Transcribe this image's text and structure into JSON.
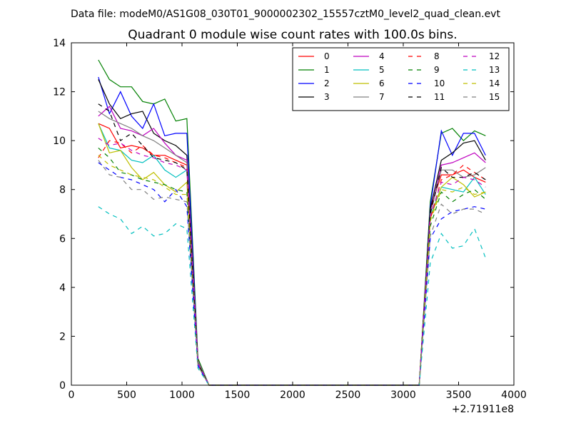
{
  "figure": {
    "suptitle": "Data file: modeM0/AS1G08_030T01_9000002302_15557cztM0_level2_quad_clean.evt"
  },
  "chart_data": {
    "type": "line",
    "title": "Quadrant 0 module wise count rates with 100.0s bins.",
    "xlabel": "",
    "ylabel": "",
    "xlim": [
      0,
      4000
    ],
    "ylim": [
      0,
      14
    ],
    "x_offset_label": "+2.71911e8",
    "xticks": [
      0,
      500,
      1000,
      1500,
      2000,
      2500,
      3000,
      3500,
      4000
    ],
    "yticks": [
      0,
      2,
      4,
      6,
      8,
      10,
      12,
      14
    ],
    "xtick_labels": [
      "0",
      "500",
      "1000",
      "1500",
      "2000",
      "2500",
      "3000",
      "3500",
      "4000"
    ],
    "ytick_labels": [
      "0",
      "2",
      "4",
      "6",
      "8",
      "10",
      "12",
      "14"
    ],
    "grid": false,
    "legend": {
      "position": "top-right",
      "columns": 4
    },
    "x": [
      244,
      344,
      444,
      544,
      644,
      744,
      844,
      944,
      1044,
      1144,
      1244,
      1344,
      1444,
      1544,
      1644,
      1744,
      1844,
      1944,
      2044,
      2144,
      2244,
      2344,
      2444,
      2544,
      2644,
      2744,
      2844,
      2944,
      3044,
      3144,
      3244,
      3344,
      3444,
      3544,
      3644,
      3744
    ],
    "series": [
      {
        "name": "0",
        "color": "#ff0000",
        "dash": "solid",
        "values": [
          10.7,
          10.5,
          9.7,
          9.8,
          9.7,
          9.4,
          9.4,
          9.2,
          9.0,
          1.0,
          0,
          0,
          0,
          0,
          0,
          0,
          0,
          0,
          0,
          0,
          0,
          0,
          0,
          0,
          0,
          0,
          0,
          0,
          0,
          0,
          7.2,
          8.6,
          8.6,
          8.8,
          8.5,
          8.3
        ]
      },
      {
        "name": "1",
        "color": "#008000",
        "dash": "solid",
        "values": [
          13.3,
          12.5,
          12.2,
          12.2,
          11.6,
          11.5,
          11.7,
          10.8,
          10.9,
          1.1,
          0,
          0,
          0,
          0,
          0,
          0,
          0,
          0,
          0,
          0,
          0,
          0,
          0,
          0,
          0,
          0,
          0,
          0,
          0,
          0,
          7.5,
          10.3,
          10.5,
          10.0,
          10.4,
          10.2
        ]
      },
      {
        "name": "2",
        "color": "#0000ff",
        "dash": "solid",
        "values": [
          12.6,
          11.1,
          12.0,
          11.0,
          10.5,
          11.5,
          10.2,
          10.3,
          10.3,
          1.0,
          0,
          0,
          0,
          0,
          0,
          0,
          0,
          0,
          0,
          0,
          0,
          0,
          0,
          0,
          0,
          0,
          0,
          0,
          0,
          0,
          7.3,
          10.4,
          9.4,
          10.3,
          10.3,
          9.4
        ]
      },
      {
        "name": "3",
        "color": "#000000",
        "dash": "solid",
        "values": [
          12.5,
          11.5,
          10.9,
          11.1,
          11.2,
          10.3,
          10.0,
          9.8,
          9.4,
          1.0,
          0,
          0,
          0,
          0,
          0,
          0,
          0,
          0,
          0,
          0,
          0,
          0,
          0,
          0,
          0,
          0,
          0,
          0,
          0,
          0,
          7.2,
          9.2,
          9.5,
          9.9,
          10.0,
          9.2
        ]
      },
      {
        "name": "4",
        "color": "#bf00bf",
        "dash": "solid",
        "values": [
          11.0,
          11.4,
          10.5,
          10.4,
          10.2,
          10.5,
          9.9,
          9.4,
          9.2,
          1.0,
          0,
          0,
          0,
          0,
          0,
          0,
          0,
          0,
          0,
          0,
          0,
          0,
          0,
          0,
          0,
          0,
          0,
          0,
          0,
          0,
          7.0,
          9.0,
          9.1,
          9.3,
          9.5,
          9.1
        ]
      },
      {
        "name": "5",
        "color": "#00bfbf",
        "dash": "solid",
        "values": [
          10.7,
          9.7,
          9.6,
          9.2,
          9.1,
          9.4,
          8.8,
          8.5,
          8.8,
          0.9,
          0,
          0,
          0,
          0,
          0,
          0,
          0,
          0,
          0,
          0,
          0,
          0,
          0,
          0,
          0,
          0,
          0,
          0,
          0,
          0,
          6.9,
          8.1,
          8.0,
          7.9,
          8.5,
          7.8
        ]
      },
      {
        "name": "6",
        "color": "#bfbf00",
        "dash": "solid",
        "values": [
          10.7,
          9.5,
          9.6,
          8.9,
          8.4,
          8.7,
          8.2,
          7.9,
          8.3,
          0.9,
          0,
          0,
          0,
          0,
          0,
          0,
          0,
          0,
          0,
          0,
          0,
          0,
          0,
          0,
          0,
          0,
          0,
          0,
          0,
          0,
          6.8,
          8.1,
          8.5,
          8.2,
          7.7,
          7.9
        ]
      },
      {
        "name": "7",
        "color": "#808080",
        "dash": "solid",
        "values": [
          11.2,
          10.9,
          10.7,
          10.5,
          10.2,
          10.0,
          9.7,
          9.4,
          9.1,
          1.0,
          0,
          0,
          0,
          0,
          0,
          0,
          0,
          0,
          0,
          0,
          0,
          0,
          0,
          0,
          0,
          0,
          0,
          0,
          0,
          0,
          7.0,
          8.8,
          8.8,
          8.5,
          8.6,
          8.9
        ]
      },
      {
        "name": "8",
        "color": "#ff0000",
        "dash": "dashed",
        "values": [
          9.3,
          10.0,
          9.9,
          9.5,
          9.8,
          9.4,
          9.3,
          9.1,
          8.9,
          0.9,
          0,
          0,
          0,
          0,
          0,
          0,
          0,
          0,
          0,
          0,
          0,
          0,
          0,
          0,
          0,
          0,
          0,
          0,
          0,
          0,
          6.8,
          8.4,
          8.6,
          9.0,
          8.7,
          8.4
        ]
      },
      {
        "name": "9",
        "color": "#008000",
        "dash": "dashed",
        "values": [
          9.7,
          9.3,
          8.7,
          8.6,
          8.4,
          8.3,
          8.2,
          8.0,
          7.9,
          0.9,
          0,
          0,
          0,
          0,
          0,
          0,
          0,
          0,
          0,
          0,
          0,
          0,
          0,
          0,
          0,
          0,
          0,
          0,
          0,
          0,
          6.5,
          7.9,
          7.5,
          7.8,
          8.0,
          7.6
        ]
      },
      {
        "name": "10",
        "color": "#0000ff",
        "dash": "dashed",
        "values": [
          9.1,
          8.8,
          8.5,
          8.4,
          8.2,
          8.0,
          7.5,
          8.0,
          7.3,
          0.8,
          0,
          0,
          0,
          0,
          0,
          0,
          0,
          0,
          0,
          0,
          0,
          0,
          0,
          0,
          0,
          0,
          0,
          0,
          0,
          0,
          6.0,
          6.8,
          7.1,
          7.2,
          7.3,
          7.2
        ]
      },
      {
        "name": "11",
        "color": "#000000",
        "dash": "dashed",
        "values": [
          11.5,
          11.2,
          10.0,
          10.3,
          9.8,
          9.3,
          9.2,
          9.1,
          8.8,
          0.9,
          0,
          0,
          0,
          0,
          0,
          0,
          0,
          0,
          0,
          0,
          0,
          0,
          0,
          0,
          0,
          0,
          0,
          0,
          0,
          0,
          7.0,
          8.9,
          8.5,
          8.5,
          8.7,
          8.4
        ]
      },
      {
        "name": "12",
        "color": "#bf00bf",
        "dash": "dashed",
        "values": [
          10.1,
          9.8,
          9.9,
          9.6,
          9.4,
          9.3,
          9.1,
          9.0,
          8.8,
          0.9,
          0,
          0,
          0,
          0,
          0,
          0,
          0,
          0,
          0,
          0,
          0,
          0,
          0,
          0,
          0,
          0,
          0,
          0,
          0,
          0,
          6.9,
          8.3,
          8.2,
          8.5,
          8.4,
          8.1
        ]
      },
      {
        "name": "13",
        "color": "#00bfbf",
        "dash": "dashed",
        "values": [
          7.3,
          7.0,
          6.8,
          6.2,
          6.5,
          6.1,
          6.2,
          6.6,
          6.4,
          0.7,
          0,
          0,
          0,
          0,
          0,
          0,
          0,
          0,
          0,
          0,
          0,
          0,
          0,
          0,
          0,
          0,
          0,
          0,
          0,
          0,
          5.0,
          6.2,
          5.6,
          5.7,
          6.4,
          5.2
        ]
      },
      {
        "name": "14",
        "color": "#bfbf00",
        "dash": "dashed",
        "values": [
          9.4,
          9.0,
          8.8,
          8.6,
          8.5,
          8.4,
          8.1,
          7.8,
          7.8,
          0.8,
          0,
          0,
          0,
          0,
          0,
          0,
          0,
          0,
          0,
          0,
          0,
          0,
          0,
          0,
          0,
          0,
          0,
          0,
          0,
          0,
          6.7,
          8.0,
          7.9,
          8.1,
          7.8,
          7.9
        ]
      },
      {
        "name": "15",
        "color": "#808080",
        "dash": "dashed",
        "values": [
          9.2,
          8.6,
          8.5,
          8.0,
          8.0,
          7.6,
          7.7,
          7.6,
          7.5,
          0.8,
          0,
          0,
          0,
          0,
          0,
          0,
          0,
          0,
          0,
          0,
          0,
          0,
          0,
          0,
          0,
          0,
          0,
          0,
          0,
          0,
          6.1,
          7.4,
          7.0,
          7.2,
          7.2,
          7.0
        ]
      }
    ]
  }
}
